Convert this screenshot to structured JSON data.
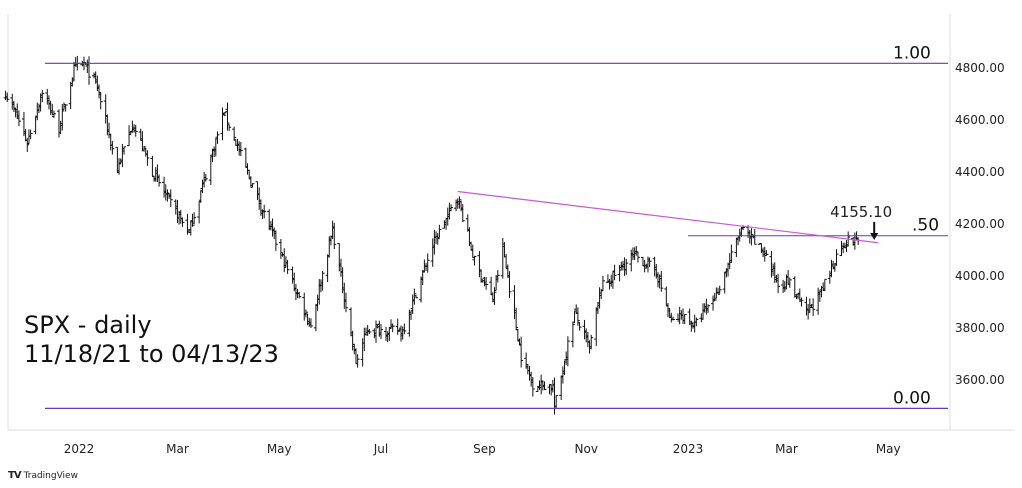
{
  "chart_data": {
    "type": "ohlc",
    "title": "SPX - daily",
    "subtitle": "11/18/21 to 04/13/23",
    "ylim": [
      3480,
      4860
    ],
    "y_ticks": [
      "4800.00",
      "4600.00",
      "4400.00",
      "4200.00",
      "4000.00",
      "3800.00",
      "3600.00"
    ],
    "y_tick_values": [
      4800,
      4600,
      4400,
      4200,
      4000,
      3800,
      3600
    ],
    "x_ticks": [
      "2022",
      "Mar",
      "May",
      "Jul",
      "Sep",
      "Nov",
      "2023",
      "Mar",
      "May"
    ],
    "x_tick_dates": [
      "2022-01-01",
      "2022-03-01",
      "2022-05-01",
      "2022-07-01",
      "2022-09-01",
      "2022-11-01",
      "2023-01-01",
      "2023-03-01",
      "2023-05-01"
    ],
    "x_range": [
      "2021-11-18",
      "2023-05-18"
    ],
    "grid": false,
    "fib_levels": [
      {
        "label": "1.00",
        "value": 4818
      },
      {
        "label": ".50",
        "value": 4155
      },
      {
        "label": "0.00",
        "value": 3491
      }
    ],
    "annotation": {
      "label": "4155.10",
      "value": 4155.1,
      "date": "2023-04-13"
    },
    "trendline": {
      "start_date": "2022-08-16",
      "start_value": 4325,
      "end_date": "2023-04-25",
      "end_value": 4128
    },
    "level_colors": {
      "horizontal": "#5b3fb5",
      "trendline": "#c85ad4",
      "bars": "#111111"
    },
    "series": [
      {
        "name": "SPX",
        "values": [
          [
            "2021-11-18",
            4705
          ],
          [
            "2021-11-26",
            4595
          ],
          [
            "2021-12-01",
            4513
          ],
          [
            "2021-12-10",
            4712
          ],
          [
            "2021-12-20",
            4568
          ],
          [
            "2021-12-29",
            4793
          ],
          [
            "2022-01-04",
            4818
          ],
          [
            "2022-01-12",
            4726
          ],
          [
            "2022-01-24",
            4410
          ],
          [
            "2022-02-02",
            4589
          ],
          [
            "2022-02-14",
            4401
          ],
          [
            "2022-02-24",
            4288
          ],
          [
            "2022-03-08",
            4170
          ],
          [
            "2022-03-29",
            4631
          ],
          [
            "2022-04-12",
            4397
          ],
          [
            "2022-04-26",
            4175
          ],
          [
            "2022-05-12",
            3930
          ],
          [
            "2022-05-20",
            3810
          ],
          [
            "2022-06-02",
            4177
          ],
          [
            "2022-06-16",
            3667
          ],
          [
            "2022-06-23",
            3795
          ],
          [
            "2022-07-14",
            3790
          ],
          [
            "2022-08-01",
            4119
          ],
          [
            "2022-08-16",
            4305
          ],
          [
            "2022-08-26",
            4057
          ],
          [
            "2022-09-06",
            3908
          ],
          [
            "2022-09-12",
            4110
          ],
          [
            "2022-09-23",
            3693
          ],
          [
            "2022-09-30",
            3585
          ],
          [
            "2022-10-12",
            3577
          ],
          [
            "2022-10-13",
            3491
          ],
          [
            "2022-10-25",
            3859
          ],
          [
            "2022-11-03",
            3720
          ],
          [
            "2022-11-10",
            3956
          ],
          [
            "2022-11-30",
            4080
          ],
          [
            "2022-12-13",
            4019
          ],
          [
            "2022-12-22",
            3822
          ],
          [
            "2022-12-29",
            3849
          ],
          [
            "2023-01-05",
            3808
          ],
          [
            "2023-01-18",
            3928
          ],
          [
            "2023-02-02",
            4179
          ],
          [
            "2023-02-16",
            4090
          ],
          [
            "2023-02-24",
            3970
          ],
          [
            "2023-03-02",
            3981
          ],
          [
            "2023-03-13",
            3855
          ],
          [
            "2023-03-22",
            3937
          ],
          [
            "2023-04-03",
            4124
          ],
          [
            "2023-04-13",
            4146
          ]
        ]
      }
    ]
  },
  "branding": {
    "logo": "TV",
    "name": "TradingView"
  }
}
